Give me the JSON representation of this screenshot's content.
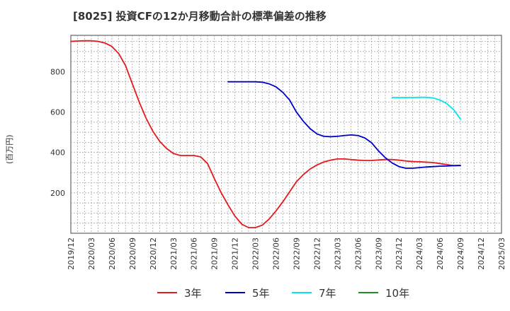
{
  "chart_data": {
    "type": "line",
    "title": "[8025]  投資CFの12か月移動合計の標準偏差の推移",
    "ylabel": "(百万円)",
    "xlabel": "",
    "ylim": [
      0,
      980
    ],
    "y_ticks": [
      200,
      400,
      600,
      800
    ],
    "x_ticks": [
      "2019/12",
      "2020/03",
      "2020/06",
      "2020/09",
      "2020/12",
      "2021/03",
      "2021/06",
      "2021/09",
      "2021/12",
      "2022/03",
      "2022/06",
      "2022/09",
      "2022/12",
      "2023/03",
      "2023/06",
      "2023/09",
      "2023/12",
      "2024/03",
      "2024/06",
      "2024/09",
      "2024/12",
      "2025/03"
    ],
    "grid": true,
    "legend_position": "bottom",
    "series": [
      {
        "name": "3年",
        "color": "#e41a1c",
        "x": [
          "2019/12",
          "2020/01",
          "2020/02",
          "2020/03",
          "2020/04",
          "2020/05",
          "2020/06",
          "2020/07",
          "2020/08",
          "2020/09",
          "2020/10",
          "2020/11",
          "2020/12",
          "2021/01",
          "2021/02",
          "2021/03",
          "2021/04",
          "2021/05",
          "2021/06",
          "2021/07",
          "2021/08",
          "2021/09",
          "2021/10",
          "2021/11",
          "2021/12",
          "2022/01",
          "2022/02",
          "2022/03",
          "2022/04",
          "2022/05",
          "2022/06",
          "2022/07",
          "2022/08",
          "2022/09",
          "2022/10",
          "2022/11",
          "2022/12",
          "2023/01",
          "2023/02",
          "2023/03",
          "2023/04",
          "2023/05",
          "2023/06",
          "2023/07",
          "2023/08",
          "2023/09",
          "2023/10",
          "2023/11",
          "2023/12",
          "2024/01",
          "2024/02",
          "2024/03",
          "2024/04",
          "2024/05",
          "2024/06",
          "2024/07",
          "2024/08",
          "2024/09"
        ],
        "values": [
          950,
          952,
          953,
          953,
          950,
          942,
          925,
          890,
          830,
          740,
          650,
          570,
          505,
          455,
          420,
          395,
          385,
          385,
          385,
          378,
          345,
          270,
          200,
          140,
          85,
          45,
          28,
          28,
          40,
          70,
          110,
          155,
          205,
          255,
          290,
          318,
          338,
          353,
          362,
          368,
          368,
          365,
          362,
          360,
          360,
          363,
          365,
          365,
          362,
          358,
          355,
          354,
          352,
          350,
          345,
          340,
          335,
          335
        ]
      },
      {
        "name": "5年",
        "color": "#0000cc",
        "x": [
          "2021/11",
          "2021/12",
          "2022/01",
          "2022/02",
          "2022/03",
          "2022/04",
          "2022/05",
          "2022/06",
          "2022/07",
          "2022/08",
          "2022/09",
          "2022/10",
          "2022/11",
          "2022/12",
          "2023/01",
          "2023/02",
          "2023/03",
          "2023/04",
          "2023/05",
          "2023/06",
          "2023/07",
          "2023/08",
          "2023/09",
          "2023/10",
          "2023/11",
          "2023/12",
          "2024/01",
          "2024/02",
          "2024/03",
          "2024/04",
          "2024/05",
          "2024/06",
          "2024/07",
          "2024/08",
          "2024/09"
        ],
        "values": [
          750,
          750,
          750,
          750,
          750,
          748,
          740,
          725,
          698,
          660,
          600,
          555,
          518,
          492,
          480,
          478,
          480,
          484,
          487,
          484,
          472,
          448,
          408,
          374,
          348,
          330,
          322,
          322,
          325,
          328,
          330,
          332,
          333,
          335,
          336
        ]
      },
      {
        "name": "7年",
        "color": "#00e5ee",
        "x": [
          "2023/11",
          "2023/12",
          "2024/01",
          "2024/02",
          "2024/03",
          "2024/04",
          "2024/05",
          "2024/06",
          "2024/07",
          "2024/08",
          "2024/09"
        ],
        "values": [
          672,
          672,
          672,
          672,
          673,
          673,
          670,
          660,
          642,
          612,
          565
        ]
      },
      {
        "name": "10年",
        "color": "#228b22",
        "x": [],
        "values": []
      }
    ]
  }
}
